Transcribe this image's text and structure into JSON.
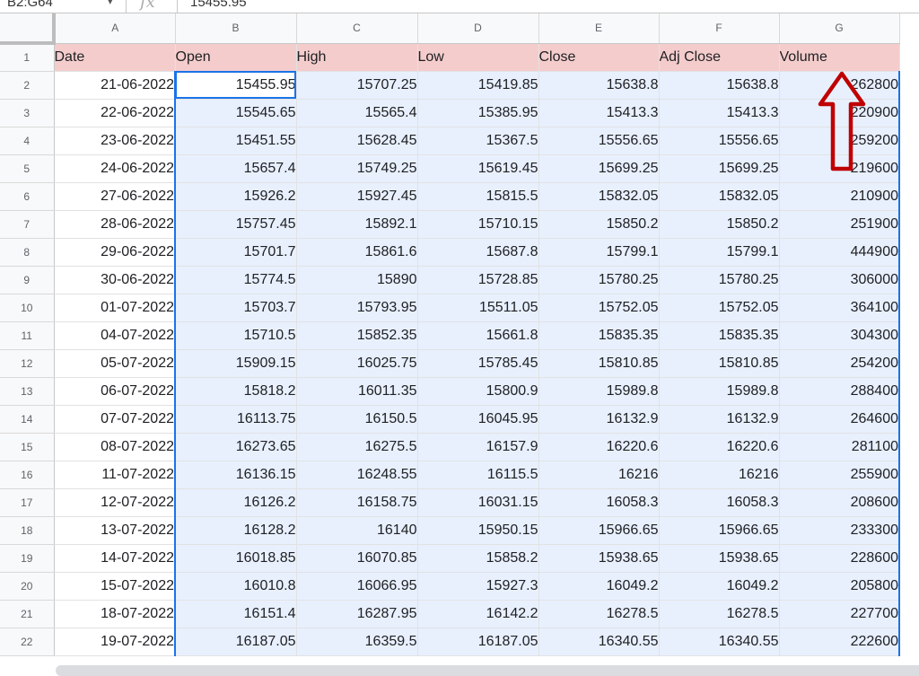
{
  "formula_bar": {
    "name_box": "B2:G64",
    "fx_label": "fx",
    "formula": "15455.95"
  },
  "columns": [
    "A",
    "B",
    "C",
    "D",
    "E",
    "F",
    "G"
  ],
  "headers": [
    "Date",
    "Open",
    "High",
    "Low",
    "Close",
    "Adj Close",
    "Volume"
  ],
  "row_numbers": [
    "1",
    "2",
    "3",
    "4",
    "5",
    "6",
    "7",
    "8",
    "9",
    "10",
    "11",
    "12",
    "13",
    "14",
    "15",
    "16",
    "17",
    "18",
    "19",
    "20",
    "21",
    "22"
  ],
  "rows": [
    [
      "21-06-2022",
      "15455.95",
      "15707.25",
      "15419.85",
      "15638.8",
      "15638.8",
      "262800"
    ],
    [
      "22-06-2022",
      "15545.65",
      "15565.4",
      "15385.95",
      "15413.3",
      "15413.3",
      "220900"
    ],
    [
      "23-06-2022",
      "15451.55",
      "15628.45",
      "15367.5",
      "15556.65",
      "15556.65",
      "259200"
    ],
    [
      "24-06-2022",
      "15657.4",
      "15749.25",
      "15619.45",
      "15699.25",
      "15699.25",
      "219600"
    ],
    [
      "27-06-2022",
      "15926.2",
      "15927.45",
      "15815.5",
      "15832.05",
      "15832.05",
      "210900"
    ],
    [
      "28-06-2022",
      "15757.45",
      "15892.1",
      "15710.15",
      "15850.2",
      "15850.2",
      "251900"
    ],
    [
      "29-06-2022",
      "15701.7",
      "15861.6",
      "15687.8",
      "15799.1",
      "15799.1",
      "444900"
    ],
    [
      "30-06-2022",
      "15774.5",
      "15890",
      "15728.85",
      "15780.25",
      "15780.25",
      "306000"
    ],
    [
      "01-07-2022",
      "15703.7",
      "15793.95",
      "15511.05",
      "15752.05",
      "15752.05",
      "364100"
    ],
    [
      "04-07-2022",
      "15710.5",
      "15852.35",
      "15661.8",
      "15835.35",
      "15835.35",
      "304300"
    ],
    [
      "05-07-2022",
      "15909.15",
      "16025.75",
      "15785.45",
      "15810.85",
      "15810.85",
      "254200"
    ],
    [
      "06-07-2022",
      "15818.2",
      "16011.35",
      "15800.9",
      "15989.8",
      "15989.8",
      "288400"
    ],
    [
      "07-07-2022",
      "16113.75",
      "16150.5",
      "16045.95",
      "16132.9",
      "16132.9",
      "264600"
    ],
    [
      "08-07-2022",
      "16273.65",
      "16275.5",
      "16157.9",
      "16220.6",
      "16220.6",
      "281100"
    ],
    [
      "11-07-2022",
      "16136.15",
      "16248.55",
      "16115.5",
      "16216",
      "16216",
      "255900"
    ],
    [
      "12-07-2022",
      "16126.2",
      "16158.75",
      "16031.15",
      "16058.3",
      "16058.3",
      "208600"
    ],
    [
      "13-07-2022",
      "16128.2",
      "16140",
      "15950.15",
      "15966.65",
      "15966.65",
      "233300"
    ],
    [
      "14-07-2022",
      "16018.85",
      "16070.85",
      "15858.2",
      "15938.65",
      "15938.65",
      "228600"
    ],
    [
      "15-07-2022",
      "16010.8",
      "16066.95",
      "15927.3",
      "16049.2",
      "16049.2",
      "205800"
    ],
    [
      "18-07-2022",
      "16151.4",
      "16287.95",
      "16142.2",
      "16278.5",
      "16278.5",
      "227700"
    ],
    [
      "19-07-2022",
      "16187.05",
      "16359.5",
      "16187.05",
      "16340.55",
      "16340.55",
      "222600"
    ]
  ],
  "colors": {
    "header_fill": "#f4cccc",
    "selection_fill": "#e8f0fe",
    "selection_border": "#1a73e8",
    "annotation_arrow": "#c00000"
  }
}
